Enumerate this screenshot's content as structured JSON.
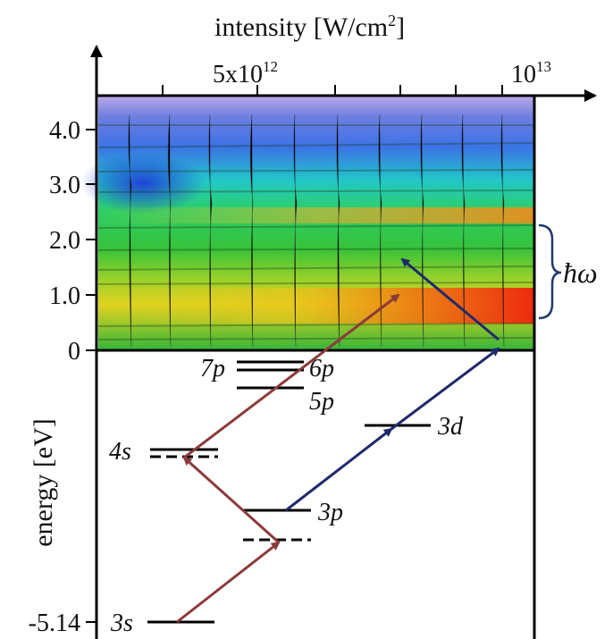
{
  "top_axis": {
    "label_main": "intensity [W/cm",
    "label_sup": "2",
    "label_close": "]",
    "ticks": [
      {
        "mantissa": "5x10",
        "exp": "12"
      },
      {
        "mantissa": "10",
        "exp": "13"
      }
    ]
  },
  "left_axis": {
    "label": "energy [eV]",
    "ticks": [
      "4.0",
      "3.0",
      "2.0",
      "1.0",
      "0",
      "-5.14"
    ]
  },
  "levels": [
    {
      "orbital": "3s",
      "energy": -5.14
    },
    {
      "orbital": "4s"
    },
    {
      "orbital": "3p"
    },
    {
      "orbital": "3d"
    },
    {
      "orbital": "5p"
    },
    {
      "orbital": "6p"
    },
    {
      "orbital": "7p"
    }
  ],
  "bracket_label": "ħω",
  "colors": {
    "red_path": "#8b3a3a",
    "blue_path": "#1f2a6b",
    "axis": "#000000",
    "bracket": "#1f3a6b"
  }
}
